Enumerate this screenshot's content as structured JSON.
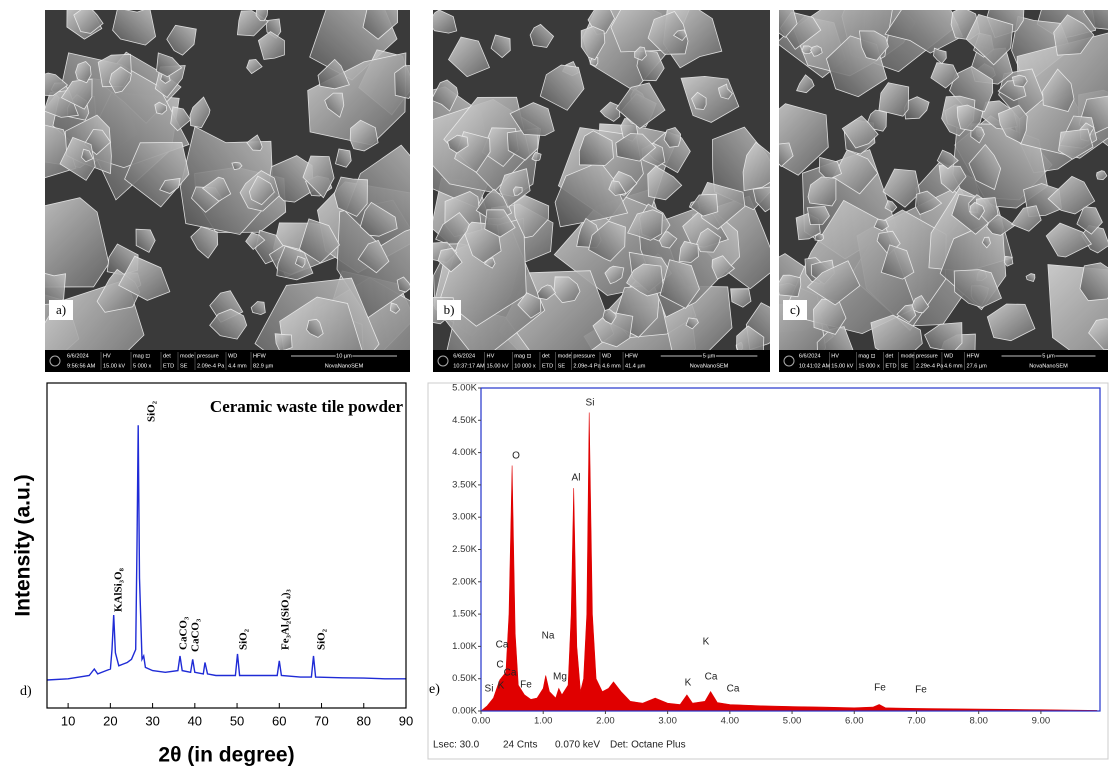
{
  "sem_panels": [
    {
      "label": "a)",
      "date": "6/6/2024",
      "time": "9:56:56 AM",
      "fields": [
        {
          "head": "HV",
          "value": "15.00 kV"
        },
        {
          "head": "mag ⊡",
          "value": "5 000 x"
        },
        {
          "head": "det",
          "value": "ETD"
        },
        {
          "head": "mode",
          "value": "SE"
        },
        {
          "head": "pressure",
          "value": "2.09e-4 Pa"
        },
        {
          "head": "WD",
          "value": "4.4 mm"
        },
        {
          "head": "HFW",
          "value": "82.9 µm"
        }
      ],
      "scale_bar": "10 µm",
      "brand": "NovaNanoSEM"
    },
    {
      "label": "b)",
      "date": "6/6/2024",
      "time": "10:37:17 AM",
      "fields": [
        {
          "head": "HV",
          "value": "15.00 kV"
        },
        {
          "head": "mag ⊡",
          "value": "10 000 x"
        },
        {
          "head": "det",
          "value": "ETD"
        },
        {
          "head": "mode",
          "value": "SE"
        },
        {
          "head": "pressure",
          "value": "2.09e-4 Pa"
        },
        {
          "head": "WD",
          "value": "4.6 mm"
        },
        {
          "head": "HFW",
          "value": "41.4 µm"
        }
      ],
      "scale_bar": "5 µm",
      "brand": "NovaNanoSEM"
    },
    {
      "label": "c)",
      "date": "6/6/2024",
      "time": "10:41:02 AM",
      "fields": [
        {
          "head": "HV",
          "value": "15.00 kV"
        },
        {
          "head": "mag ⊡",
          "value": "15 000 x"
        },
        {
          "head": "det",
          "value": "ETD"
        },
        {
          "head": "mode",
          "value": "SE"
        },
        {
          "head": "pressure",
          "value": "2.29e-4 Pa"
        },
        {
          "head": "WD",
          "value": "4.6 mm"
        },
        {
          "head": "HFW",
          "value": "27.6 µm"
        }
      ],
      "scale_bar": "5 µm",
      "brand": "NovaNanoSEM"
    }
  ],
  "chart_data": [
    {
      "type": "line",
      "panel_label": "d)",
      "title": "Ceramic waste tile powder",
      "xlabel": "2θ (in degree)",
      "ylabel": "Intensity (a.u.)",
      "x": [
        5,
        10,
        15,
        16.2,
        17,
        19,
        20,
        20.4,
        20.8,
        21.2,
        22,
        23,
        24,
        25,
        26,
        26.3,
        26.6,
        26.9,
        27.5,
        27.9,
        28.3,
        30,
        33,
        36,
        36.5,
        37,
        39,
        39.5,
        40,
        42,
        42.4,
        43,
        45,
        48,
        49.6,
        50.1,
        50.6,
        55,
        59.5,
        60,
        60.5,
        65,
        67.6,
        68.1,
        68.6,
        75,
        80,
        85,
        90
      ],
      "series": [
        {
          "color": "#1f2bd6",
          "values": [
            8.6,
            9,
            10,
            12,
            10.5,
            11.5,
            12,
            18,
            28.6,
            17,
            13,
            13.5,
            14,
            15,
            18,
            50,
            87,
            40,
            15,
            16,
            12.5,
            11.5,
            11,
            11.5,
            16,
            11.5,
            11,
            15,
            11,
            10.5,
            14,
            10.5,
            10,
            10,
            10,
            16.6,
            10,
            10,
            10,
            14.5,
            10,
            9.5,
            9.5,
            16,
            9.5,
            9.3,
            9.2,
            9,
            9
          ]
        }
      ],
      "xlim": [
        5,
        90
      ],
      "xticks": [
        10,
        20,
        30,
        40,
        50,
        60,
        70,
        80,
        90
      ],
      "ylim": [
        0,
        100
      ],
      "annotations": [
        "SiO₂",
        "KAlSi₃O₈",
        "CaCO₃",
        "CaCO₃",
        "SiO₂",
        "Fe₃Al₂(SiO₄)₃",
        "SiO₂"
      ]
    },
    {
      "type": "area",
      "panel_label": "e)",
      "x": [
        0,
        0.1,
        0.2,
        0.3,
        0.4,
        0.45,
        0.5,
        0.55,
        0.6,
        0.7,
        0.8,
        0.9,
        1.0,
        1.04,
        1.1,
        1.2,
        1.25,
        1.3,
        1.4,
        1.45,
        1.49,
        1.54,
        1.6,
        1.65,
        1.7,
        1.74,
        1.79,
        1.85,
        1.95,
        2.05,
        2.13,
        2.25,
        2.4,
        2.6,
        2.8,
        3.0,
        3.2,
        3.31,
        3.4,
        3.6,
        3.69,
        3.8,
        4.0,
        4.5,
        5.0,
        5.5,
        6.0,
        6.3,
        6.4,
        6.5,
        7.0,
        8.0,
        9.0,
        9.9
      ],
      "series": [
        {
          "color": "#e00000",
          "values": [
            0,
            80,
            200,
            480,
            600,
            1500,
            3800,
            1200,
            400,
            250,
            180,
            200,
            350,
            550,
            300,
            200,
            350,
            250,
            400,
            1500,
            3450,
            1000,
            300,
            500,
            1500,
            4620,
            1500,
            500,
            300,
            350,
            450,
            300,
            150,
            120,
            200,
            120,
            100,
            250,
            120,
            150,
            300,
            130,
            100,
            80,
            70,
            60,
            50,
            60,
            100,
            50,
            40,
            30,
            20,
            10
          ]
        }
      ],
      "xlim": [
        0,
        9.95
      ],
      "xticks": [
        {
          "value": 0,
          "label": "0.00"
        },
        {
          "value": 1,
          "label": "1.00"
        },
        {
          "value": 2,
          "label": "2.00"
        },
        {
          "value": 3,
          "label": "3.00"
        },
        {
          "value": 4,
          "label": "4.00"
        },
        {
          "value": 5,
          "label": "5.00"
        },
        {
          "value": 6,
          "label": "6.00"
        },
        {
          "value": 7,
          "label": "7.00"
        },
        {
          "value": 8,
          "label": "8.00"
        },
        {
          "value": 9,
          "label": "9.00"
        }
      ],
      "ylim": [
        0,
        5000
      ],
      "yticks": [
        {
          "value": 0,
          "label": "0.00K"
        },
        {
          "value": 500,
          "label": "0.50K"
        },
        {
          "value": 1000,
          "label": "1.00K"
        },
        {
          "value": 1500,
          "label": "1.50K"
        },
        {
          "value": 2000,
          "label": "2.00K"
        },
        {
          "value": 2500,
          "label": "2.50K"
        },
        {
          "value": 3000,
          "label": "3.00K"
        },
        {
          "value": 3500,
          "label": "3.50K"
        },
        {
          "value": 4000,
          "label": "4.00K"
        },
        {
          "value": 4500,
          "label": "4.50K"
        },
        {
          "value": 5000,
          "label": "5.00K"
        }
      ],
      "annotations": [
        "Si",
        "K",
        "C",
        "Ca",
        "Ca",
        "Fe",
        "Na",
        "Mg",
        "Al",
        "O",
        "Si",
        "K",
        "K",
        "Ca",
        "Ca",
        "Fe",
        "Fe"
      ],
      "footer": [
        "Lsec: 30.0",
        "24 Cnts",
        "0.070 keV",
        "Det: Octane Plus"
      ]
    }
  ]
}
